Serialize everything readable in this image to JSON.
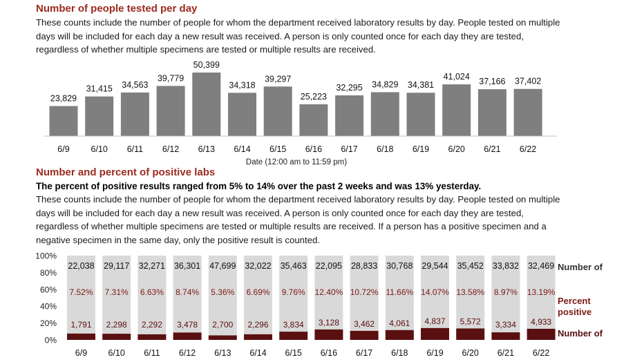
{
  "chart_data": [
    {
      "type": "bar",
      "title": "Number of people tested per day",
      "description": "These counts include the number of people for whom the department received laboratory results by day. People tested on multiple days will be included for each day a new result was received. A person is only counted once for each day they are tested, regardless of whether multiple specimens are tested or multiple results are received.",
      "xlabel": "Date (12:00 am to 11:59 pm)",
      "categories": [
        "6/9",
        "6/10",
        "6/11",
        "6/12",
        "6/13",
        "6/14",
        "6/15",
        "6/16",
        "6/17",
        "6/18",
        "6/19",
        "6/20",
        "6/21",
        "6/22"
      ],
      "values": [
        23829,
        31415,
        34563,
        39779,
        50399,
        34318,
        39297,
        25223,
        32295,
        34829,
        34381,
        41024,
        37166,
        37402
      ],
      "value_labels": [
        "23,829",
        "31,415",
        "34,563",
        "39,779",
        "50,399",
        "34,318",
        "39,297",
        "25,223",
        "32,295",
        "34,829",
        "34,381",
        "41,024",
        "37,166",
        "37,402"
      ],
      "colors": {
        "bar": "#7f7f7f"
      }
    },
    {
      "type": "bar",
      "title": "Number and percent of positive labs",
      "subtitle": "The percent of positive results ranged from 5% to 14% over the past 2 weeks and was 13% yesterday.",
      "description": "These counts include the number of people for whom the department received laboratory results by day. People tested on multiple days will be included for each day a new result was received. A person is only counted once for each day they are tested, regardless of whether multiple specimens are tested or multiple results are received. If a person has a positive specimen and a negative specimen in the same day, only the positive result is counted.",
      "categories": [
        "6/9",
        "6/10",
        "6/11",
        "6/12",
        "6/13",
        "6/14",
        "6/15",
        "6/16",
        "6/17",
        "6/18",
        "6/19",
        "6/20",
        "6/21",
        "6/22"
      ],
      "yticks": [
        "100%",
        "80%",
        "60%",
        "40%",
        "20%",
        "0%"
      ],
      "ylim": [
        0,
        100
      ],
      "stacked_100": true,
      "series": [
        {
          "name": "Number of",
          "values": [
            22038,
            29117,
            32271,
            36301,
            47699,
            32022,
            35463,
            22095,
            28833,
            30768,
            29544,
            35452,
            33832,
            32469
          ],
          "labels": [
            "22,038",
            "29,117",
            "32,271",
            "36,301",
            "47,699",
            "32,022",
            "35,463",
            "22,095",
            "28,833",
            "30,768",
            "29,544",
            "35,452",
            "33,832",
            "32,469"
          ],
          "color": "#d9d9d9"
        },
        {
          "name": "Number of",
          "values": [
            1791,
            2298,
            2292,
            3478,
            2700,
            2296,
            3834,
            3128,
            3462,
            4061,
            4837,
            5572,
            3334,
            4933
          ],
          "labels": [
            "1,791",
            "2,298",
            "2,292",
            "3,478",
            "2,700",
            "2,296",
            "3,834",
            "3,128",
            "3,462",
            "4,061",
            "4,837",
            "5,572",
            "3,334",
            "4,933"
          ],
          "color": "#5a1010"
        }
      ],
      "percent_positive": {
        "name": "Percent positive",
        "values": [
          7.52,
          7.31,
          6.63,
          8.74,
          5.36,
          6.69,
          9.76,
          12.4,
          10.72,
          11.66,
          14.07,
          13.58,
          8.97,
          13.19
        ],
        "labels": [
          "7.52%",
          "7.31%",
          "6.63%",
          "8.74%",
          "5.36%",
          "6.69%",
          "9.76%",
          "12.40%",
          "10.72%",
          "11.66%",
          "14.07%",
          "13.58%",
          "8.97%",
          "13.19%"
        ],
        "color": "#7a1a14"
      }
    }
  ]
}
